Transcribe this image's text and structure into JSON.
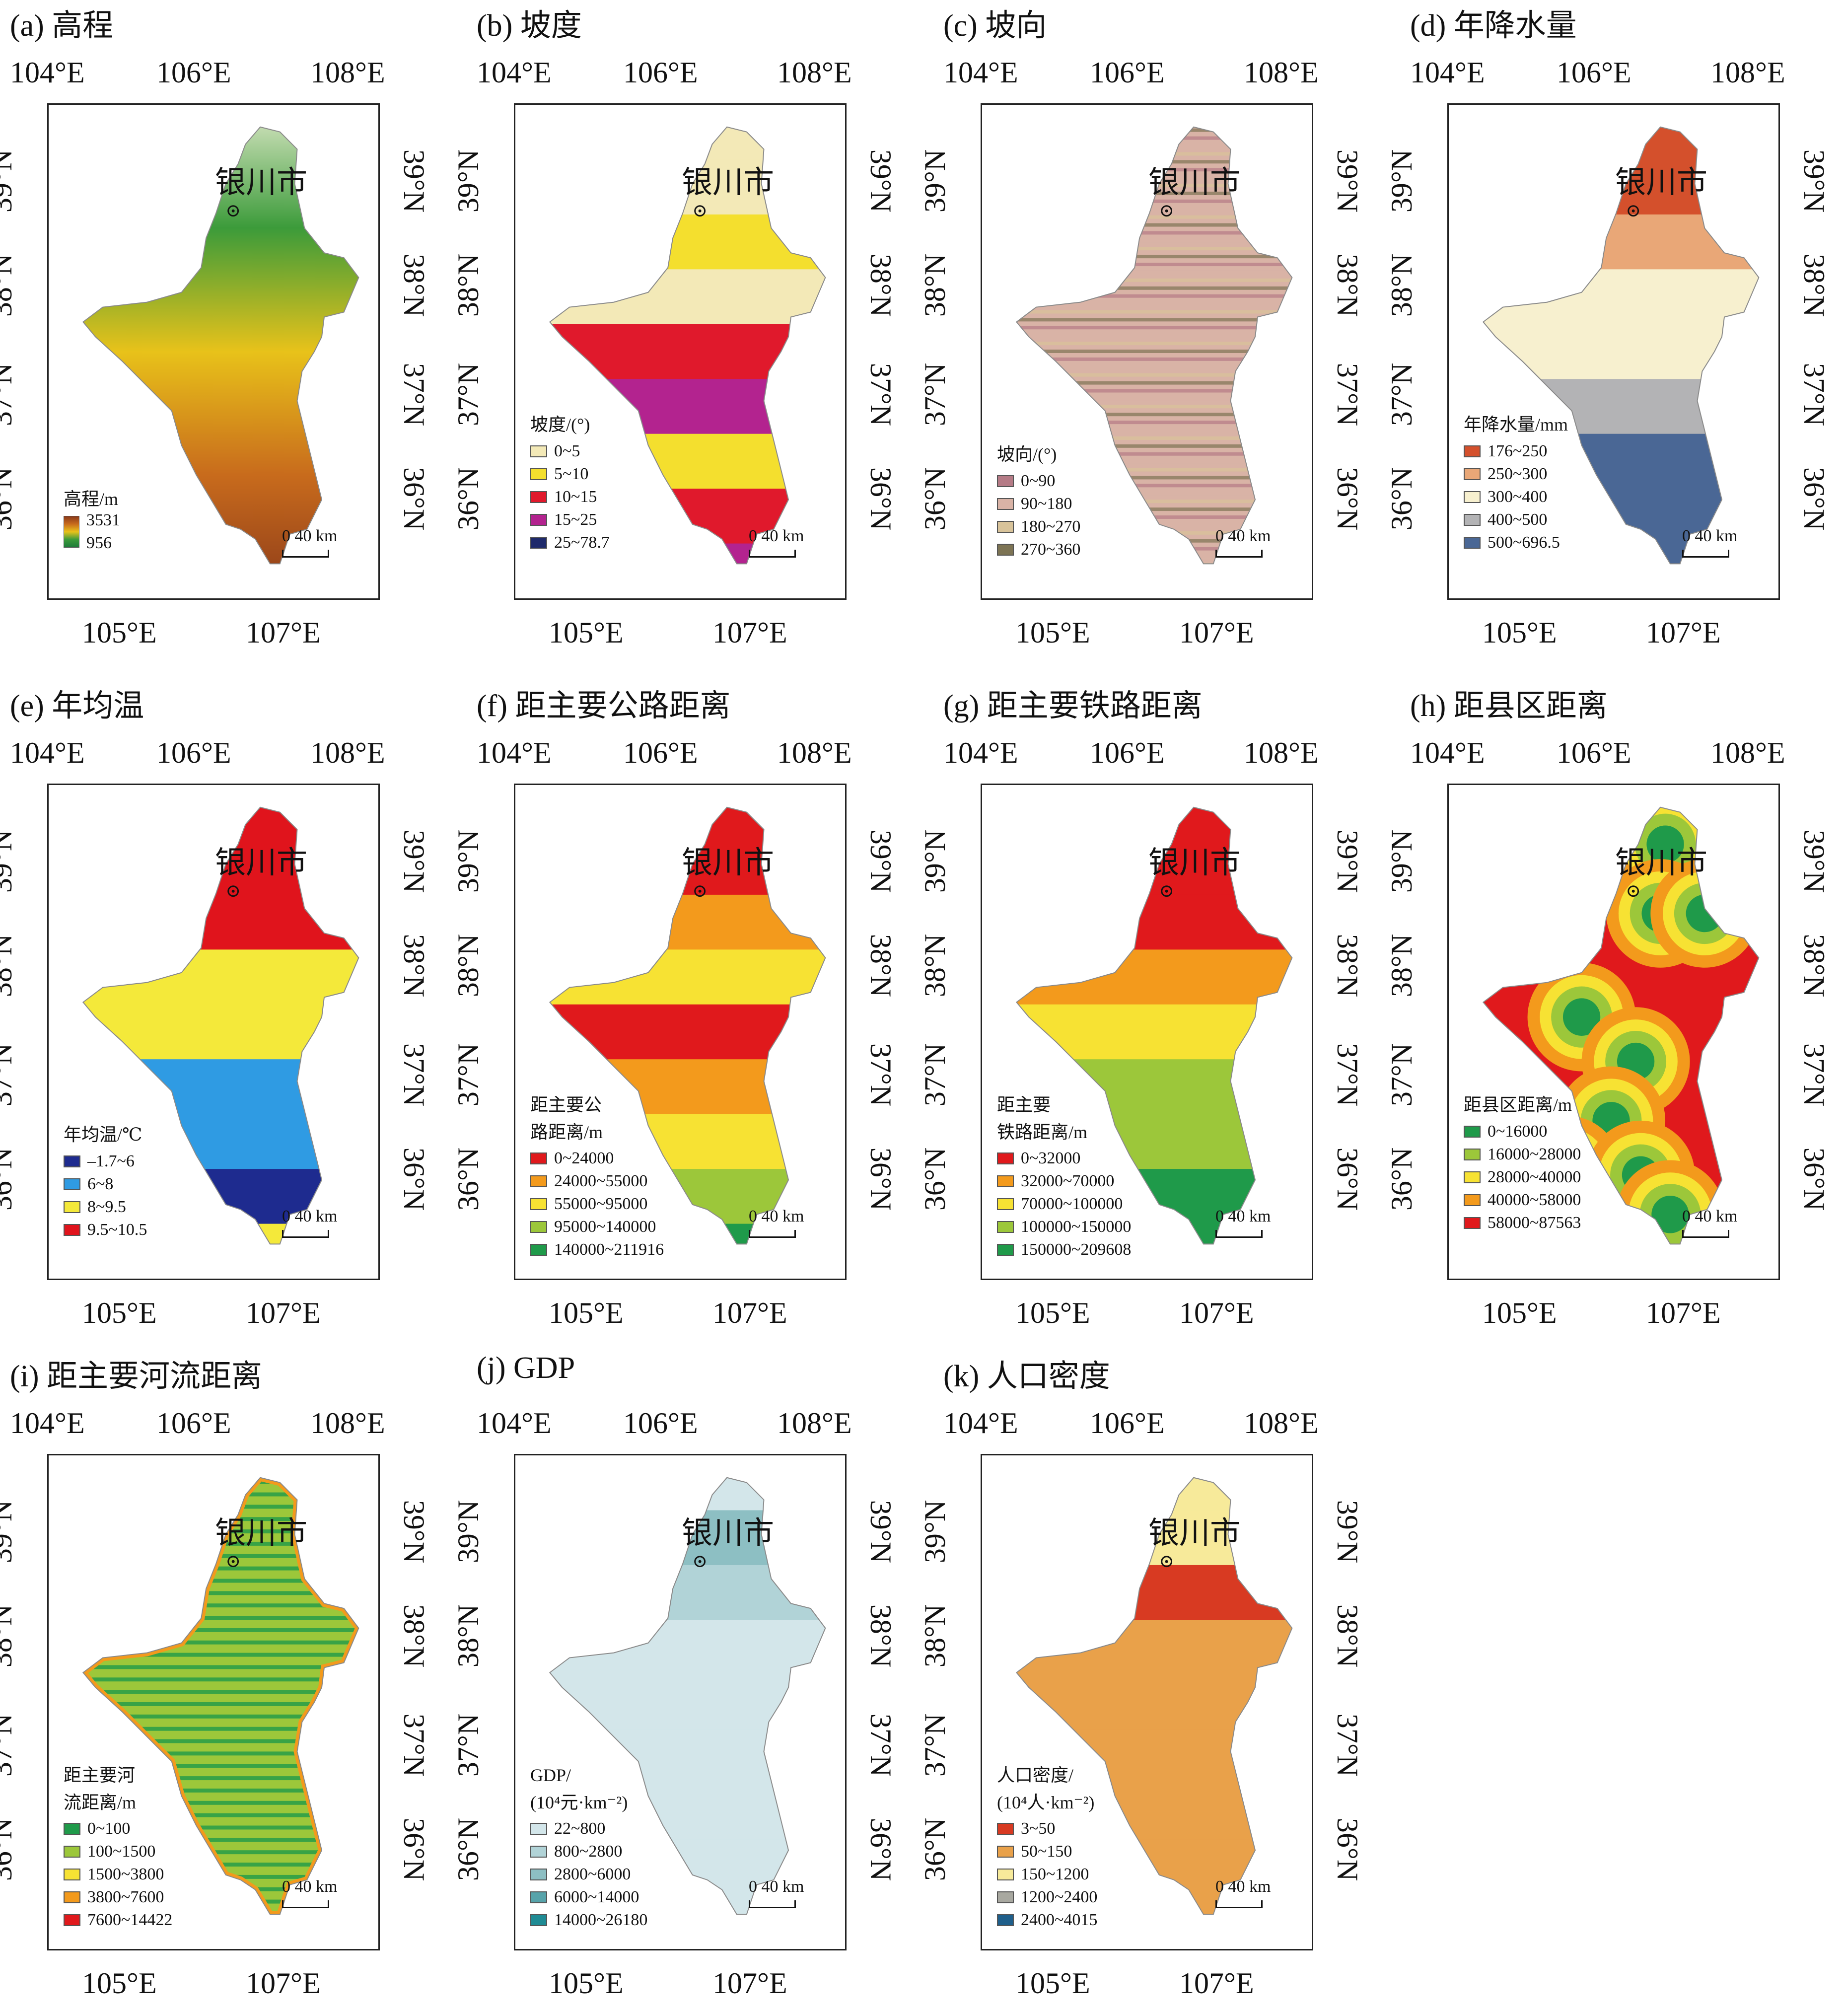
{
  "axes": {
    "top": [
      "104°E",
      "106°E",
      "108°E"
    ],
    "bottom": [
      "105°E",
      "107°E"
    ],
    "left": [
      "39°N",
      "38°N",
      "37°N",
      "36°N"
    ],
    "right": [
      "39°N",
      "38°N",
      "37°N",
      "36°N"
    ]
  },
  "city_label": "银川市",
  "scale": {
    "zero": "0",
    "label": "40 km"
  },
  "panels": [
    {
      "id": "a",
      "title": "(a) 高程",
      "type": "gradient",
      "legend_title": "高程/m",
      "legend_title2": "",
      "grad_max": "3531",
      "grad_min": "956",
      "classes": [],
      "colors": [
        "#8b3a1a",
        "#1e7a3a"
      ]
    },
    {
      "id": "b",
      "title": "(b) 坡度",
      "type": "classes",
      "legend_title": "坡度/(°)",
      "legend_title2": "",
      "classes": [
        "0~5",
        "5~10",
        "10~15",
        "15~25",
        "25~78.7"
      ],
      "colors": [
        "#f3e9b7",
        "#f4df2e",
        "#e0192c",
        "#b3238f",
        "#1f2a6b"
      ]
    },
    {
      "id": "c",
      "title": "(c) 坡向",
      "type": "classes",
      "legend_title": "坡向/(°)",
      "legend_title2": "",
      "classes": [
        "0~90",
        "90~180",
        "180~270",
        "270~360"
      ],
      "colors": [
        "#b57b86",
        "#d9b3a6",
        "#d8c39a",
        "#7d7454"
      ]
    },
    {
      "id": "d",
      "title": "(d) 年降水量",
      "type": "classes",
      "legend_title": "年降水量/mm",
      "legend_title2": "",
      "classes": [
        "176~250",
        "250~300",
        "300~400",
        "400~500",
        "500~696.5"
      ],
      "colors": [
        "#d4502c",
        "#e9a777",
        "#f7f0cf",
        "#b3b3b5",
        "#4a6795"
      ]
    },
    {
      "id": "e",
      "title": "(e) 年均温",
      "type": "classes",
      "legend_title": "年均温/℃",
      "legend_title2": "",
      "classes": [
        "–1.7~6",
        "6~8",
        "8~9.5",
        "9.5~10.5"
      ],
      "colors": [
        "#1e2b8f",
        "#2f9be3",
        "#f4e93a",
        "#e0141c"
      ]
    },
    {
      "id": "f",
      "title": "(f) 距主要公路距离",
      "type": "classes",
      "legend_title": "距主要公",
      "legend_title2": "路距离/m",
      "classes": [
        "0~24000",
        "24000~55000",
        "55000~95000",
        "95000~140000",
        "140000~211916"
      ],
      "colors": [
        "#e0191c",
        "#f39a1c",
        "#f7e233",
        "#9cc73a",
        "#1f9a4a"
      ]
    },
    {
      "id": "g",
      "title": "(g) 距主要铁路距离",
      "type": "classes",
      "legend_title": "距主要",
      "legend_title2": "铁路距离/m",
      "classes": [
        "0~32000",
        "32000~70000",
        "70000~100000",
        "100000~150000",
        "150000~209608"
      ],
      "colors": [
        "#e0191c",
        "#f39a1c",
        "#f7e233",
        "#9cc73a",
        "#1f9a4a"
      ]
    },
    {
      "id": "h",
      "title": "(h) 距县区距离",
      "type": "classes",
      "legend_title": "距县区距离/m",
      "legend_title2": "",
      "classes": [
        "0~16000",
        "16000~28000",
        "28000~40000",
        "40000~58000",
        "58000~87563"
      ],
      "colors": [
        "#1f9a4a",
        "#9cc73a",
        "#f7e233",
        "#f39a1c",
        "#e0191c"
      ]
    },
    {
      "id": "i",
      "title": "(i) 距主要河流距离",
      "type": "classes",
      "legend_title": "距主要河",
      "legend_title2": "流距离/m",
      "classes": [
        "0~100",
        "100~1500",
        "1500~3800",
        "3800~7600",
        "7600~14422"
      ],
      "colors": [
        "#1f9a4a",
        "#9cc73a",
        "#f7e233",
        "#f39a1c",
        "#e0191c"
      ]
    },
    {
      "id": "j",
      "title": "(j) GDP",
      "type": "classes",
      "legend_title": "GDP/",
      "legend_title2": "(10⁴元·km⁻²)",
      "classes": [
        "22~800",
        "800~2800",
        "2800~6000",
        "6000~14000",
        "14000~26180"
      ],
      "colors": [
        "#d3e6ea",
        "#b1d3d7",
        "#8dbfc3",
        "#57a3aa",
        "#1f8b94"
      ]
    },
    {
      "id": "k",
      "title": "(k) 人口密度",
      "type": "classes",
      "legend_title": "人口密度/",
      "legend_title2": "(10⁴人·km⁻²)",
      "classes": [
        "3~50",
        "50~150",
        "150~1200",
        "1200~2400",
        "2400~4015"
      ],
      "colors": [
        "#d83a22",
        "#e9a14a",
        "#f7ea9a",
        "#a8a8a0",
        "#1f5f8b"
      ]
    }
  ]
}
